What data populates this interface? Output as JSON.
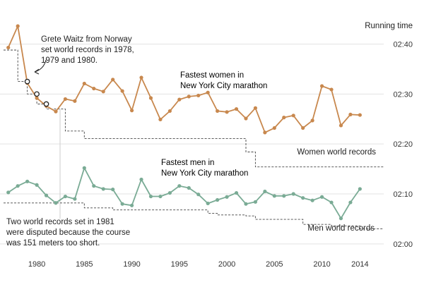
{
  "chart_data": {
    "type": "line",
    "y_axis_title": "Running time",
    "x_ticks": [
      1980,
      1985,
      1990,
      1995,
      2000,
      2005,
      2010,
      2014
    ],
    "y_ticks": [
      {
        "value": 120,
        "label": "02:00"
      },
      {
        "value": 130,
        "label": "02:10"
      },
      {
        "value": 140,
        "label": "02:20"
      },
      {
        "value": 150,
        "label": "02:30"
      },
      {
        "value": 160,
        "label": "02:40"
      }
    ],
    "xlim": [
      1976.5,
      2016.5
    ],
    "ylim": [
      118,
      166
    ],
    "colors": {
      "women": "#c8884e",
      "men": "#7aab95",
      "records": "#444444",
      "grid": "#e3e3e3",
      "text": "#222222"
    },
    "series": [
      {
        "name": "Fastest women in New York City marathon",
        "key": "women",
        "x": [
          1977,
          1978,
          1979,
          1980,
          1981,
          1982,
          1983,
          1984,
          1985,
          1986,
          1987,
          1988,
          1989,
          1990,
          1991,
          1992,
          1993,
          1994,
          1995,
          1996,
          1997,
          1998,
          1999,
          2000,
          2001,
          2002,
          2003,
          2004,
          2005,
          2006,
          2007,
          2008,
          2009,
          2010,
          2011,
          2012,
          2013,
          2014
        ],
        "y": [
          159.3,
          163.6,
          152.2,
          149.2,
          147.6,
          146.5,
          149.0,
          148.6,
          152.1,
          151.1,
          150.5,
          152.9,
          150.6,
          146.7,
          153.3,
          149.2,
          144.9,
          146.6,
          148.9,
          149.5,
          149.7,
          150.3,
          146.6,
          146.4,
          147.0,
          145.1,
          147.2,
          142.3,
          143.2,
          145.3,
          145.7,
          143.2,
          144.7,
          151.6,
          150.9,
          143.7,
          145.9,
          145.8
        ]
      },
      {
        "name": "Fastest men in New York City marathon",
        "key": "men",
        "x": [
          1977,
          1978,
          1979,
          1980,
          1981,
          1982,
          1983,
          1984,
          1985,
          1986,
          1987,
          1988,
          1989,
          1990,
          1991,
          1992,
          1993,
          1994,
          1995,
          1996,
          1997,
          1998,
          1999,
          2000,
          2001,
          2002,
          2003,
          2004,
          2005,
          2006,
          2007,
          2008,
          2009,
          2010,
          2011,
          2012,
          2013,
          2014
        ],
        "y": [
          130.3,
          131.6,
          132.5,
          131.8,
          129.7,
          128.2,
          129.5,
          129.0,
          135.2,
          131.6,
          131.0,
          130.9,
          128.0,
          127.7,
          132.9,
          129.5,
          129.5,
          130.2,
          131.6,
          131.2,
          129.9,
          128.1,
          128.8,
          129.4,
          130.2,
          128.0,
          128.4,
          130.5,
          129.6,
          129.6,
          130.0,
          129.2,
          128.7,
          129.4,
          128.3,
          125.1,
          128.3,
          131.0
        ]
      },
      {
        "name": "Women world records",
        "key": "women_wr",
        "x": [
          1976.5,
          1978,
          1978,
          1979,
          1979,
          1980,
          1980,
          1981,
          1981,
          1983,
          1983,
          1985,
          1985,
          2002,
          2002,
          2003,
          2003,
          2016.5
        ],
        "y": [
          158.8,
          158.8,
          152.5,
          152.5,
          150.0,
          150.0,
          148.0,
          148.0,
          147.0,
          147.0,
          142.6,
          142.6,
          141.1,
          141.1,
          138.4,
          138.4,
          135.4,
          135.4
        ]
      },
      {
        "name": "Men world records",
        "key": "men_wr",
        "x": [
          1976.5,
          1981,
          1981,
          1985,
          1985,
          1988,
          1988,
          1998,
          1998,
          1999,
          1999,
          2002,
          2002,
          2003,
          2003,
          2008,
          2008,
          2011,
          2011,
          2014,
          2014,
          2016.5
        ],
        "y": [
          128.2,
          128.2,
          128.2,
          128.2,
          127.2,
          127.2,
          126.8,
          126.8,
          126.1,
          126.1,
          125.8,
          125.8,
          125.6,
          125.6,
          124.9,
          124.9,
          123.9,
          123.9,
          123.6,
          123.6,
          123.0,
          123.0
        ]
      }
    ],
    "highlight_points": [
      {
        "series": "women_wr",
        "x": 1979,
        "y": 152.5
      },
      {
        "series": "women_wr",
        "x": 1980,
        "y": 150.0
      },
      {
        "series": "women_wr",
        "x": 1981,
        "y": 148.0
      }
    ],
    "annotations": {
      "waitz": "Grete Waitz from Norway set world records in 1978, 1979 and 1980.",
      "women_series_label": [
        "Fastest women in",
        "New York City marathon"
      ],
      "men_series_label": [
        "Fastest men in",
        "New York City marathon"
      ],
      "women_records_label": "Women world records",
      "men_records_label": "Men world records",
      "disputed": [
        "Two world records set in 1981",
        "were disputed because the course",
        "was 151 meters too short."
      ]
    }
  }
}
